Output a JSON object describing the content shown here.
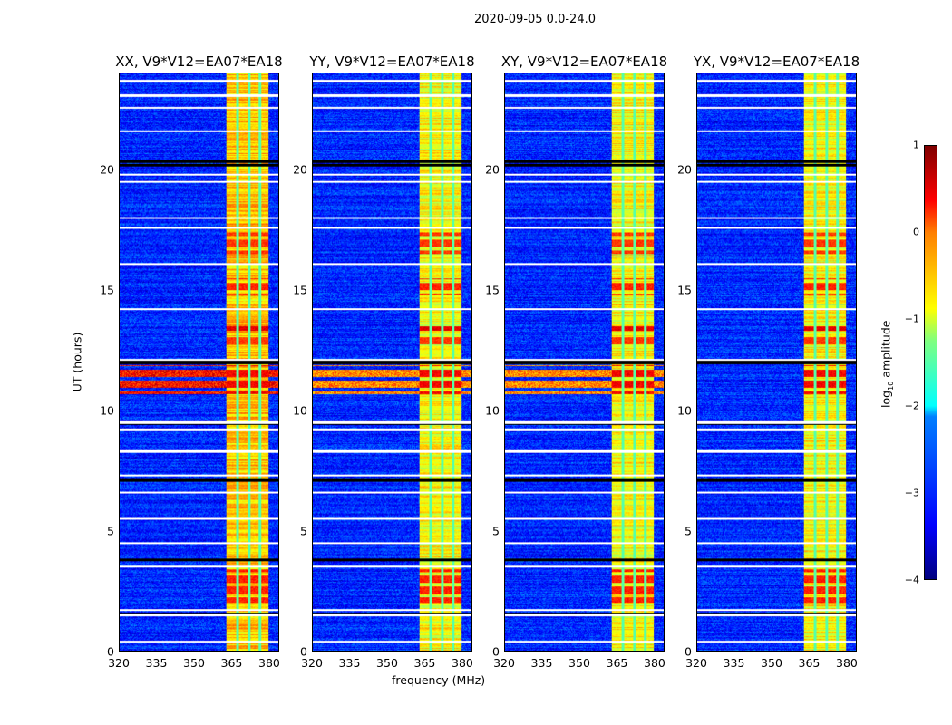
{
  "chart_data": {
    "type": "heatmap",
    "title": "2020-09-05 0.0-24.0",
    "xlabel": "frequency (MHz)",
    "ylabel": "UT (hours)",
    "xlim": [
      320,
      384
    ],
    "ylim": [
      0,
      24
    ],
    "xticks": [
      "320",
      "335",
      "350",
      "365",
      "380"
    ],
    "xtick_values": [
      320,
      335,
      350,
      365,
      380
    ],
    "yticks": [
      "0",
      "5",
      "10",
      "15",
      "20"
    ],
    "ytick_values": [
      0,
      5,
      10,
      15,
      20
    ],
    "colorbar": {
      "label": "log",
      "label_sub": "10",
      "label_rest": " amplitude",
      "range": [
        -4,
        1
      ],
      "ticks": [
        "1",
        "0",
        "−1",
        "−2",
        "−3",
        "−4"
      ],
      "tick_values": [
        1,
        0,
        -1,
        -2,
        -3,
        -4
      ],
      "colormap": "jet"
    },
    "panels": [
      {
        "title": "XX, V9*V12=EA07*EA18",
        "band_level": -0.6
      },
      {
        "title": "YY, V9*V12=EA07*EA18",
        "band_level": -0.9
      },
      {
        "title": "XY, V9*V12=EA07*EA18",
        "band_level": -0.9
      },
      {
        "title": "YX, V9*V12=EA07*EA18",
        "band_level": -0.9
      }
    ],
    "background_level": -3.2,
    "band_mhz": [
      363,
      380
    ],
    "band_gaps_mhz": [
      367.5,
      372,
      376.5
    ],
    "bright_intervals_hours": [
      [
        2.0,
        3.4,
        0.2
      ],
      [
        10.7,
        11.9,
        0.4
      ],
      [
        12.7,
        13.1,
        0.1
      ],
      [
        13.3,
        13.6,
        0.5
      ],
      [
        14.8,
        15.5,
        0.2
      ],
      [
        16.5,
        17.4,
        0.1
      ]
    ],
    "flagged_rows_hours": [
      0.4,
      1.5,
      1.7,
      3.5,
      4.5,
      5.5,
      6.6,
      7.3,
      8.3,
      9.2,
      9.5,
      12.1,
      14.2,
      16.1,
      17.6,
      18.0,
      19.5,
      19.8,
      21.6,
      22.6,
      23.1,
      23.7
    ],
    "zero_rows_hours": [
      1.55,
      3.8,
      7.1,
      9.45,
      12.0,
      20.2,
      20.35
    ]
  }
}
